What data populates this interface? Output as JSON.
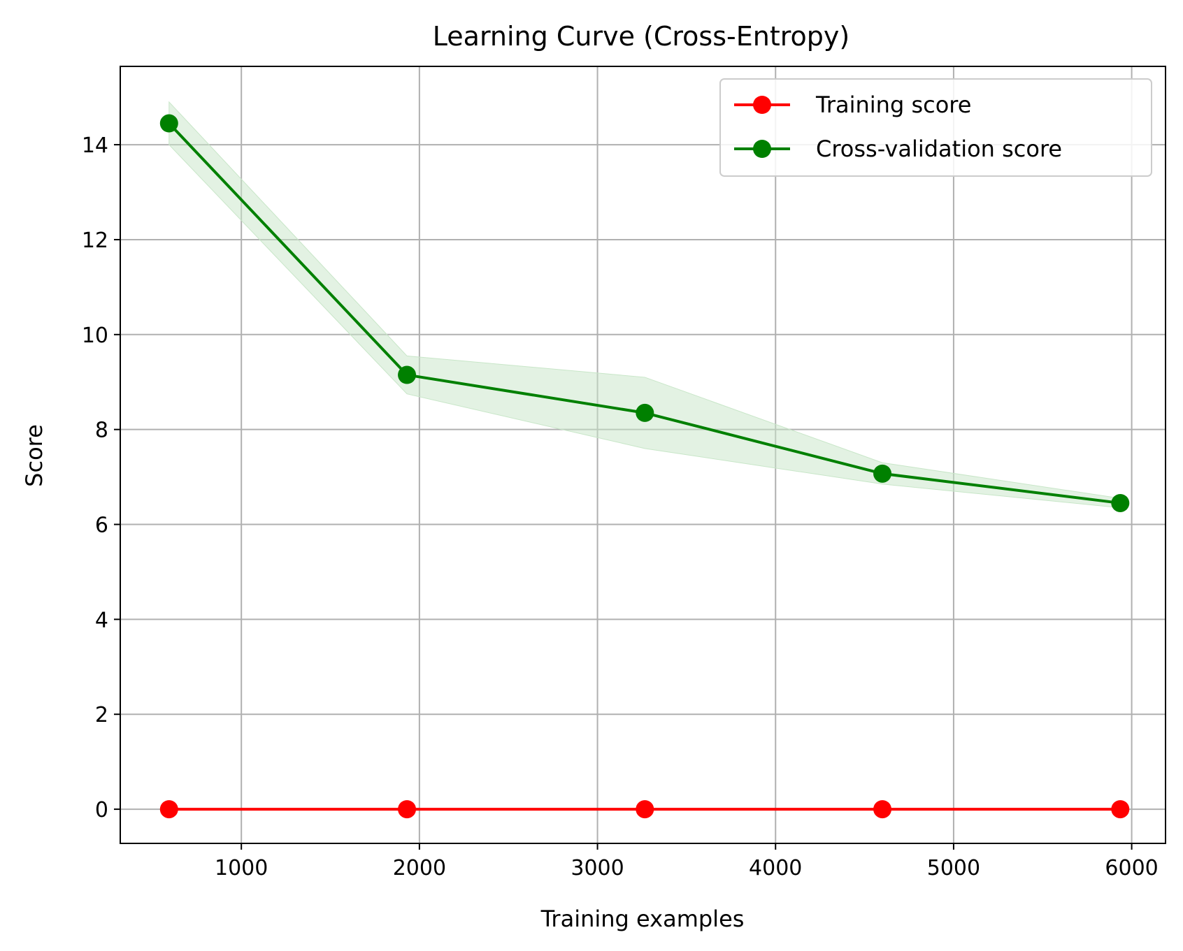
{
  "chart_data": {
    "type": "line",
    "title": "Learning Curve (Cross-Entropy)",
    "xlabel": "Training examples",
    "ylabel": "Score",
    "xlim": [
      320,
      6190
    ],
    "ylim": [
      -0.72,
      15.65
    ],
    "xticks": [
      1000,
      2000,
      3000,
      4000,
      5000,
      6000
    ],
    "yticks": [
      0,
      2,
      4,
      6,
      8,
      10,
      12,
      14
    ],
    "grid": true,
    "legend_position": "top-right",
    "x": [
      594,
      1930,
      3266,
      4600,
      5936
    ],
    "series": [
      {
        "name": "Training score",
        "color": "#ff0000",
        "marker": "circle",
        "values": [
          0,
          0,
          0,
          0,
          0
        ],
        "band_lower": [
          0,
          0,
          0,
          0,
          0
        ],
        "band_upper": [
          0,
          0,
          0,
          0,
          0
        ]
      },
      {
        "name": "Cross-validation score",
        "color": "#008000",
        "marker": "circle",
        "values": [
          14.45,
          9.15,
          8.35,
          7.07,
          6.45
        ],
        "band_lower": [
          14.0,
          8.75,
          7.6,
          6.85,
          6.35
        ],
        "band_upper": [
          14.9,
          9.55,
          9.1,
          7.3,
          6.55
        ],
        "band_color": "#c8e6c8"
      }
    ]
  }
}
